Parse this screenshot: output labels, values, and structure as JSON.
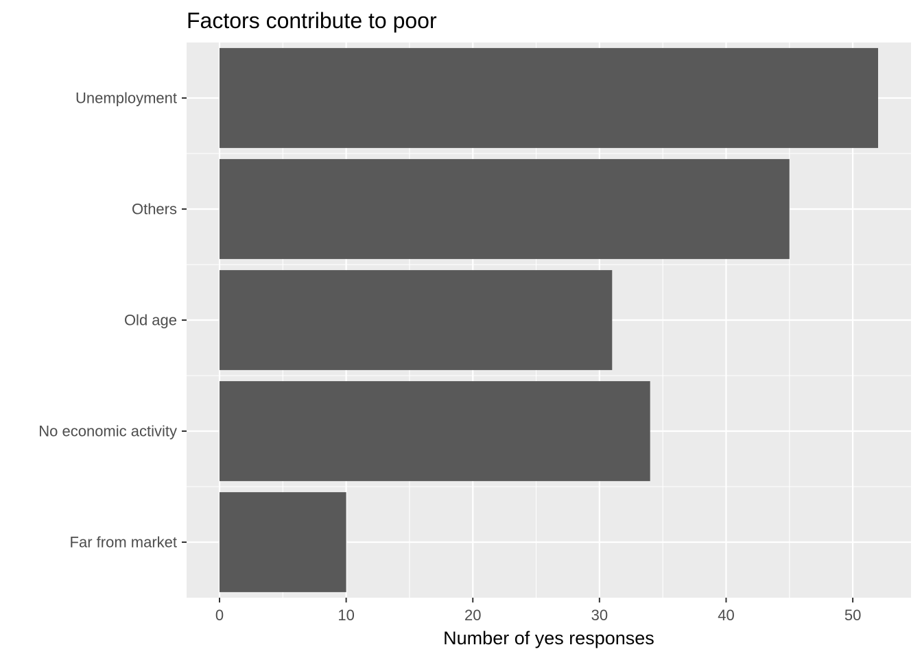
{
  "chart_data": {
    "type": "bar",
    "orientation": "horizontal",
    "title": "Factors contribute to poor",
    "xlabel": "Number of yes responses",
    "ylabel": "",
    "categories": [
      "Unemployment",
      "Others",
      "Old age",
      "No economic activity",
      "Far from market"
    ],
    "values": [
      52,
      45,
      31,
      34,
      10
    ],
    "xlim": [
      -2.6,
      54.6
    ],
    "x_ticks": [
      0,
      10,
      20,
      30,
      40,
      50
    ],
    "x_tick_labels": [
      "0",
      "10",
      "20",
      "30",
      "40",
      "50"
    ],
    "grid": true,
    "legend": "none",
    "colors": {
      "bar": "#595959",
      "panel": "#ebebeb",
      "grid_major": "#ffffff",
      "tick": "#333333"
    }
  }
}
